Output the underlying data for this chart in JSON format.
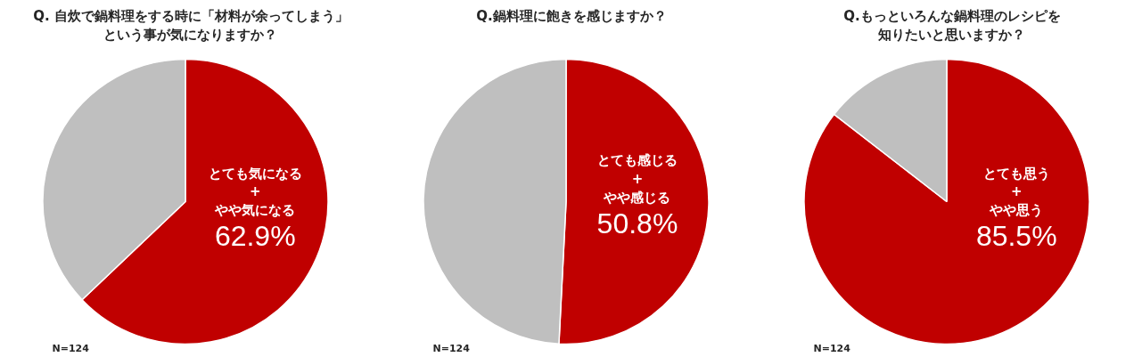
{
  "chart_data": [
    {
      "type": "pie",
      "title": "Q. 自炊で鍋料理をする時に「材料が余ってしまう」という事が気になりますか？",
      "categories": [
        "とても気になる\n+\nやや気になる",
        null
      ],
      "values": [
        62.9,
        37.1
      ],
      "value_labels": [
        "62.9%",
        null
      ],
      "colors": [
        "#c00000",
        "#bfbfbf"
      ],
      "annotations": [
        "N=124"
      ]
    },
    {
      "type": "pie",
      "title": "Q.鍋料理に飽きを感じますか？",
      "categories": [
        "とても感じる\n+\nやや感じる",
        null
      ],
      "values": [
        50.8,
        49.2
      ],
      "value_labels": [
        "50.8%",
        null
      ],
      "colors": [
        "#c00000",
        "#bfbfbf"
      ],
      "annotations": [
        "N=124"
      ]
    },
    {
      "type": "pie",
      "title": "Q.もっといろんな鍋料理のレシピを知りたいと思いますか？",
      "categories": [
        "とても思う\n+\nやや思う",
        null
      ],
      "values": [
        85.5,
        14.5
      ],
      "value_labels": [
        "85.5%",
        null
      ],
      "colors": [
        "#c00000",
        "#bfbfbf"
      ],
      "annotations": [
        "N=124"
      ]
    }
  ]
}
